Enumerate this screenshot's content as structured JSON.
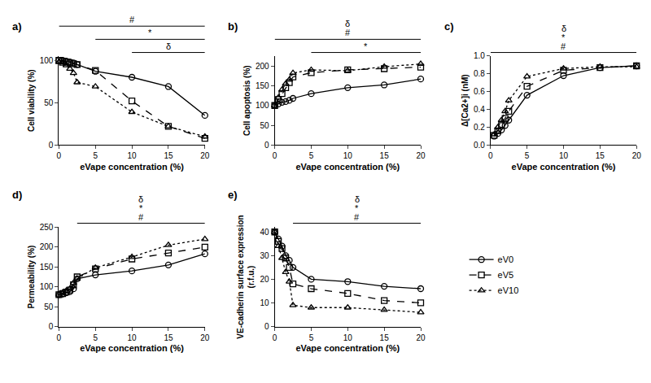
{
  "chart_data": [
    {
      "type": "line",
      "panel": "a)",
      "xlabel": "eVape concentration (%)",
      "ylabel": "Cell viability (%)",
      "x": [
        0,
        0.5,
        1,
        1.5,
        2,
        2.5,
        5,
        10,
        15,
        20
      ],
      "xlim": [
        0,
        20
      ],
      "xticks": [
        0,
        5,
        10,
        15,
        20
      ],
      "ylim": [
        0,
        105
      ],
      "yticks": [
        0,
        50,
        100
      ],
      "series": [
        {
          "name": "eV0",
          "color": "#000000",
          "marker": "circle-open",
          "line_style": "solid",
          "values": [
            100,
            100,
            99,
            98,
            97,
            95,
            87,
            80,
            69,
            35
          ]
        },
        {
          "name": "eV5",
          "color": "#000000",
          "marker": "square-open",
          "line_style": "dash",
          "values": [
            100,
            99,
            98,
            97,
            96,
            95,
            88,
            52,
            22,
            8
          ]
        },
        {
          "name": "eV10",
          "color": "#000000",
          "marker": "triangle-up-open",
          "line_style": "dot",
          "values": [
            98,
            96,
            94,
            90,
            85,
            74,
            69,
            39,
            22,
            10
          ]
        }
      ],
      "annotations": [
        {
          "labels": [
            "#"
          ],
          "from": 0,
          "to": 20
        },
        {
          "labels": [
            "*"
          ],
          "from": 5,
          "to": 20
        },
        {
          "labels": [
            "δ"
          ],
          "from": 10,
          "to": 20
        }
      ]
    },
    {
      "type": "line",
      "panel": "b)",
      "xlabel": "eVape concentration (%)",
      "ylabel": "Cell apoptosis (%)",
      "x": [
        0,
        0.5,
        1,
        1.5,
        2,
        2.5,
        5,
        10,
        15,
        20
      ],
      "xlim": [
        0,
        20
      ],
      "xticks": [
        0,
        5,
        10,
        15,
        20
      ],
      "ylim": [
        0,
        225
      ],
      "yticks": [
        0,
        50,
        100,
        150,
        200
      ],
      "series": [
        {
          "name": "eV0",
          "color": "#000000",
          "marker": "circle-open",
          "line_style": "solid",
          "values": [
            100,
            104,
            108,
            110,
            113,
            118,
            130,
            145,
            152,
            167
          ]
        },
        {
          "name": "eV5",
          "color": "#000000",
          "marker": "square-open",
          "line_style": "dash",
          "values": [
            100,
            115,
            130,
            145,
            158,
            172,
            183,
            190,
            193,
            197
          ]
        },
        {
          "name": "eV10",
          "color": "#000000",
          "marker": "triangle-up-open",
          "line_style": "dot",
          "values": [
            100,
            120,
            140,
            155,
            165,
            182,
            190,
            188,
            198,
            205
          ]
        }
      ],
      "annotations": [
        {
          "labels": [
            "#",
            "δ"
          ],
          "from": 0,
          "to": 20
        },
        {
          "labels": [
            "*"
          ],
          "from": 5,
          "to": 20
        }
      ]
    },
    {
      "type": "line",
      "panel": "c)",
      "xlabel": "eVape concentration (%)",
      "ylabel": "Δ[Ca2+]i (nM)",
      "x": [
        0.5,
        1,
        1.5,
        2,
        2.5,
        5,
        10,
        15,
        20
      ],
      "xlim": [
        0,
        20
      ],
      "xticks": [
        0,
        5,
        10,
        15,
        20
      ],
      "ylim": [
        0,
        1.0
      ],
      "yticks": [
        {
          "value": 0,
          "label": "0.0"
        },
        0.2,
        0.4,
        0.6,
        0.8,
        {
          "value": 1,
          "label": "1.0"
        }
      ],
      "series": [
        {
          "name": "eV0",
          "color": "#000000",
          "marker": "circle-open",
          "line_style": "solid",
          "values": [
            0.1,
            0.13,
            0.17,
            0.22,
            0.28,
            0.56,
            0.78,
            0.87,
            0.89
          ]
        },
        {
          "name": "eV5",
          "color": "#000000",
          "marker": "square-open",
          "line_style": "dash",
          "values": [
            0.11,
            0.16,
            0.22,
            0.3,
            0.38,
            0.66,
            0.84,
            0.87,
            0.89
          ]
        },
        {
          "name": "eV10",
          "color": "#000000",
          "marker": "triangle-up-open",
          "line_style": "dot",
          "values": [
            0.12,
            0.2,
            0.28,
            0.38,
            0.5,
            0.77,
            0.86,
            0.88,
            0.88
          ]
        }
      ],
      "annotations": [
        {
          "labels": [
            "#",
            "*",
            "δ"
          ],
          "from": 0,
          "to": 20
        }
      ]
    },
    {
      "type": "line",
      "panel": "d)",
      "xlabel": "eVape concentration (%)",
      "ylabel": "Permeability (%)",
      "x": [
        0,
        0.5,
        1,
        1.5,
        2,
        2.5,
        5,
        10,
        15,
        20
      ],
      "xlim": [
        0,
        20
      ],
      "xticks": [
        0,
        5,
        10,
        15,
        20
      ],
      "ylim": [
        0,
        250
      ],
      "yticks": [
        0,
        50,
        100,
        150,
        200,
        250
      ],
      "series": [
        {
          "name": "eV0",
          "color": "#000000",
          "marker": "circle-open",
          "line_style": "solid",
          "values": [
            80,
            82,
            85,
            88,
            95,
            120,
            130,
            140,
            155,
            183
          ]
        },
        {
          "name": "eV5",
          "color": "#000000",
          "marker": "square-open",
          "line_style": "dash",
          "values": [
            80,
            83,
            87,
            92,
            105,
            125,
            145,
            170,
            185,
            200
          ]
        },
        {
          "name": "eV10",
          "color": "#000000",
          "marker": "triangle-up-open",
          "line_style": "dot",
          "values": [
            80,
            85,
            90,
            95,
            110,
            120,
            148,
            175,
            205,
            220
          ]
        }
      ],
      "annotations": [
        {
          "labels": [
            "#",
            "*",
            "δ"
          ],
          "from": 2.5,
          "to": 20
        }
      ]
    },
    {
      "type": "line",
      "panel": "e)",
      "xlabel": "eVape concentration (%)",
      "ylabel": "VE-cadherin surface expression (r.f.u.)",
      "x": [
        0,
        0.5,
        1,
        1.5,
        2,
        2.5,
        5,
        10,
        15,
        20
      ],
      "xlim": [
        0,
        20
      ],
      "xticks": [
        0,
        5,
        10,
        15,
        20
      ],
      "ylim": [
        0,
        42
      ],
      "yticks": [
        0,
        10,
        20,
        30,
        40
      ],
      "legend": "right",
      "series": [
        {
          "name": "eV0",
          "color": "#000000",
          "marker": "circle-open",
          "line_style": "solid",
          "values": [
            40,
            37,
            34,
            30,
            28,
            25,
            20,
            19,
            17,
            16
          ]
        },
        {
          "name": "eV5",
          "color": "#000000",
          "marker": "square-open",
          "line_style": "dash",
          "values": [
            40,
            36,
            33,
            29,
            25,
            18,
            16,
            14,
            11,
            10
          ]
        },
        {
          "name": "eV10",
          "color": "#000000",
          "marker": "triangle-up-open",
          "line_style": "dot",
          "values": [
            40,
            34,
            29,
            23,
            19,
            9,
            8,
            8,
            7,
            6
          ]
        }
      ],
      "annotations": [
        {
          "labels": [
            "#",
            "*",
            "δ"
          ],
          "from": 2.5,
          "to": 20
        }
      ]
    }
  ]
}
